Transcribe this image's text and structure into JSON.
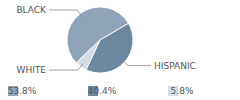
{
  "chart_data": {
    "type": "pie",
    "categories": [
      "BLACK",
      "HISPANIC",
      "WHITE"
    ],
    "values": [
      53.8,
      40.4,
      5.8
    ],
    "value_labels": [
      "53.8%",
      "40.4%",
      "5.8%"
    ],
    "colors": [
      "#8fa4b8",
      "#6d87a1",
      "#d3dce6"
    ],
    "legend": "bottom"
  }
}
